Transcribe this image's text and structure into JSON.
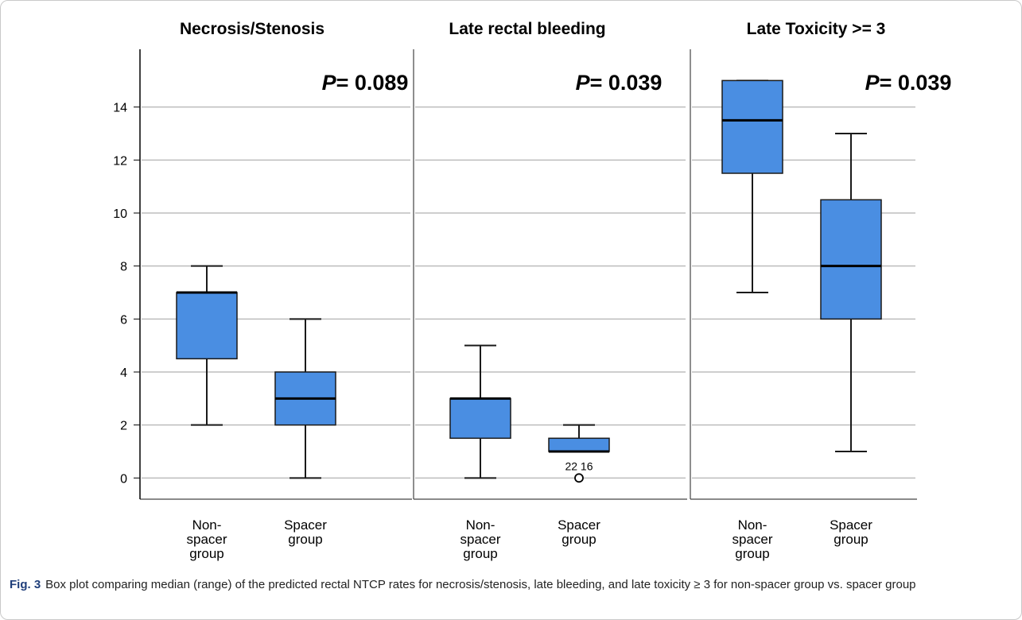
{
  "caption": {
    "label": "Fig. 3",
    "text": "Box plot comparing median (range) of the predicted rectal NTCP rates for necrosis/stenosis, late bleeding, and late toxicity ≥ 3 for non-spacer group vs. spacer group"
  },
  "colors": {
    "box_fill": "#4a8ee2",
    "box_stroke": "#1a1a1a",
    "gridline": "#bdbdbd"
  },
  "chart_data": [
    {
      "type": "boxplot",
      "title": "Necrosis/Stenosis",
      "p_value": "0.089",
      "categories": [
        "Non-spacer group",
        "Spacer group"
      ],
      "category_lines": [
        [
          "Non-",
          "spacer",
          "group"
        ],
        [
          "Spacer",
          "group"
        ]
      ],
      "ylim": [
        -0.8,
        16
      ],
      "yticks": [
        0,
        2,
        4,
        6,
        8,
        10,
        12,
        14
      ],
      "grid": true,
      "boxes": [
        {
          "min": 2,
          "q1": 4.5,
          "median": 7,
          "q3": 7,
          "max": 8
        },
        {
          "min": 0,
          "q1": 2,
          "median": 3,
          "q3": 4,
          "max": 6
        }
      ]
    },
    {
      "type": "boxplot",
      "title": "Late rectal bleeding",
      "p_value": "0.039",
      "categories": [
        "Non-spacer group",
        "Spacer group"
      ],
      "category_lines": [
        [
          "Non-",
          "spacer",
          "group"
        ],
        [
          "Spacer",
          "group"
        ]
      ],
      "ylim": [
        -0.8,
        16
      ],
      "yticks": [
        0,
        2,
        4,
        6,
        8,
        10,
        12,
        14
      ],
      "grid": true,
      "boxes": [
        {
          "min": 0,
          "q1": 1.5,
          "median": 3,
          "q3": 3,
          "max": 5
        },
        {
          "min": 1,
          "q1": 1,
          "median": 1,
          "q3": 1.5,
          "max": 2,
          "outliers": [
            {
              "value": 0,
              "labels": [
                "22",
                "16"
              ]
            }
          ]
        }
      ]
    },
    {
      "type": "boxplot",
      "title": "Late Toxicity >= 3",
      "p_value": "0.039",
      "categories": [
        "Non-spacer group",
        "Spacer group"
      ],
      "category_lines": [
        [
          "Non-",
          "spacer",
          "group"
        ],
        [
          "Spacer",
          "group"
        ]
      ],
      "ylim": [
        -0.8,
        16
      ],
      "yticks": [
        0,
        2,
        4,
        6,
        8,
        10,
        12,
        14
      ],
      "grid": true,
      "boxes": [
        {
          "min": 7,
          "q1": 11.5,
          "median": 13.5,
          "q3": 15,
          "max": 15
        },
        {
          "min": 1,
          "q1": 6,
          "median": 8,
          "q3": 10.5,
          "max": 13
        }
      ]
    }
  ]
}
